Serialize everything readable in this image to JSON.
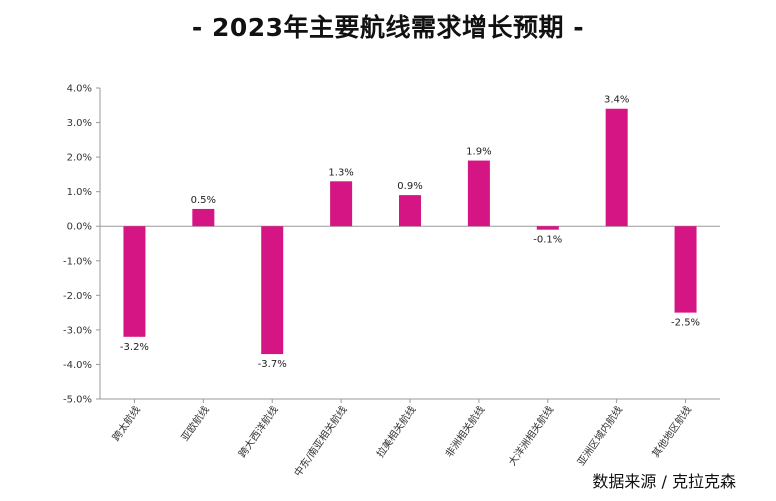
{
  "title": "- 2023年主要航线需求增长预期 -",
  "source": "数据来源 / 克拉克森",
  "colors": {
    "bar": "#d41583",
    "axis": "#999999",
    "grid": "#dddddd"
  },
  "chart_data": {
    "type": "bar",
    "title": "- 2023年主要航线需求增长预期 -",
    "categories": [
      "跨太航线",
      "亚欧航线",
      "跨大西洋航线",
      "中东/南亚相关航线",
      "拉美相关航线",
      "非洲相关航线",
      "大洋洲相关航线",
      "亚洲区域内航线",
      "其他地区航线"
    ],
    "values": [
      -3.2,
      0.5,
      -3.7,
      1.3,
      0.9,
      1.9,
      -0.1,
      3.4,
      -2.5
    ],
    "value_labels": [
      "-3.2%",
      "0.5%",
      "-3.7%",
      "1.3%",
      "0.9%",
      "1.9%",
      "-0.1%",
      "3.4%",
      "-2.5%"
    ],
    "ylim": [
      -5.0,
      4.0
    ],
    "yticks": [
      "4.0%",
      "3.0%",
      "2.0%",
      "1.0%",
      "0.0%",
      "-1.0%",
      "-2.0%",
      "-3.0%",
      "-4.0%",
      "-5.0%"
    ],
    "ytick_values": [
      4,
      3,
      2,
      1,
      0,
      -1,
      -2,
      -3,
      -4,
      -5
    ],
    "xlabel": "",
    "ylabel": "",
    "grid": false,
    "legend": "none"
  }
}
